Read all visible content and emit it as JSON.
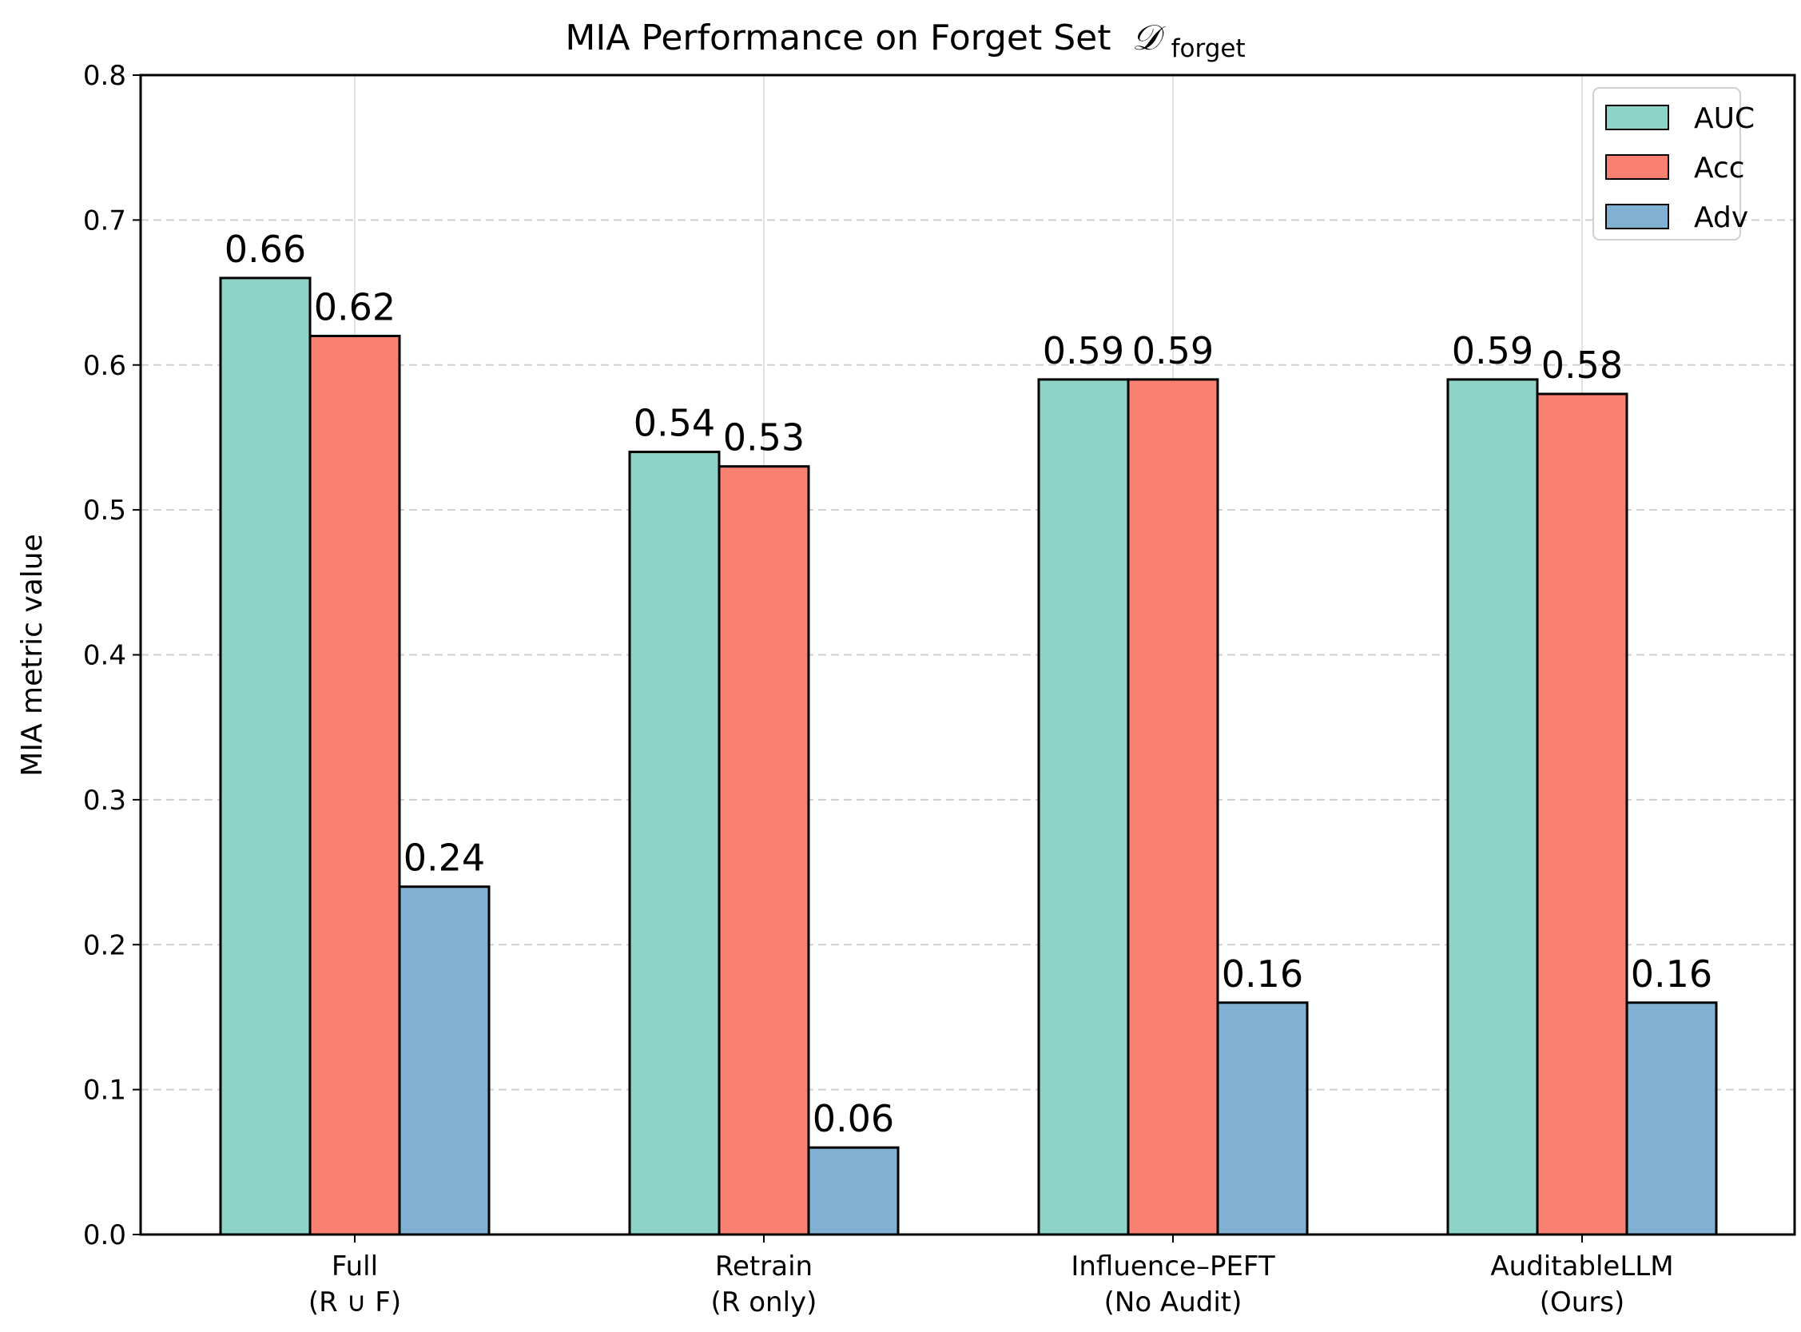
{
  "chart_data": {
    "type": "bar",
    "title": {
      "prefix": "MIA Performance on Forget Set",
      "symbol": "𝒟",
      "subscript": "forget"
    },
    "xlabel": "",
    "ylabel": "MIA metric value",
    "ylim": [
      0,
      0.8
    ],
    "yticks": [
      "0.0",
      "0.1",
      "0.2",
      "0.3",
      "0.4",
      "0.5",
      "0.6",
      "0.7",
      "0.8"
    ],
    "ytick_values": [
      0,
      0.1,
      0.2,
      0.3,
      0.4,
      0.5,
      0.6,
      0.7,
      0.8
    ],
    "grid": true,
    "legend_position": "top-right",
    "categories": [
      {
        "line1": "Full",
        "line2": "(R ∪ F)"
      },
      {
        "line1": "Retrain",
        "line2": "(R only)"
      },
      {
        "line1": "Influence–PEFT",
        "line2": "(No Audit)"
      },
      {
        "line1": "AuditableLLM",
        "line2": "(Ours)"
      }
    ],
    "series": [
      {
        "name": "AUC",
        "color": "#8dd3c7",
        "values": [
          0.66,
          0.54,
          0.59,
          0.59
        ],
        "labels": [
          "0.66",
          "0.54",
          "0.59",
          "0.59"
        ]
      },
      {
        "name": "Acc",
        "color": "#fa8072",
        "values": [
          0.62,
          0.53,
          0.59,
          0.58
        ],
        "labels": [
          "0.62",
          "0.53",
          "0.59",
          "0.58"
        ]
      },
      {
        "name": "Adv",
        "color": "#80b1d3",
        "values": [
          0.24,
          0.06,
          0.16,
          0.16
        ],
        "labels": [
          "0.24",
          "0.06",
          "0.16",
          "0.16"
        ]
      }
    ]
  }
}
